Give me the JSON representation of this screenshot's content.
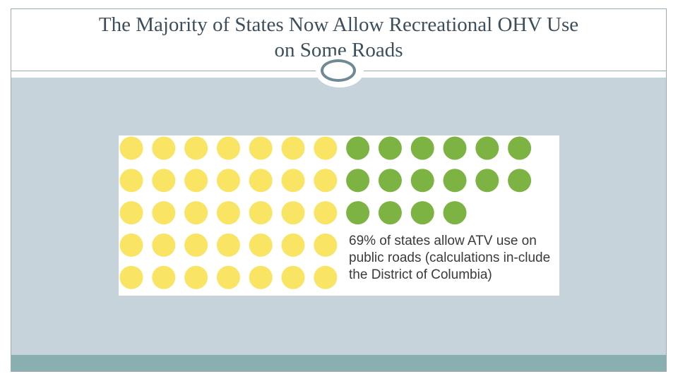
{
  "slide": {
    "title": "The Majority of States Now Allow Recreational OHV Use on Some Roads"
  },
  "emblem_icon": "oval-ring-icon",
  "chart_data": {
    "type": "dot-matrix",
    "total_units": 51,
    "highlighted_units": 35,
    "percent": 69,
    "caption": "69% of states allow ATV use on public roads (calculations in-clude the District of Columbia)",
    "colors": {
      "highlighted": "#7cb342",
      "other": "#f9e463"
    }
  }
}
